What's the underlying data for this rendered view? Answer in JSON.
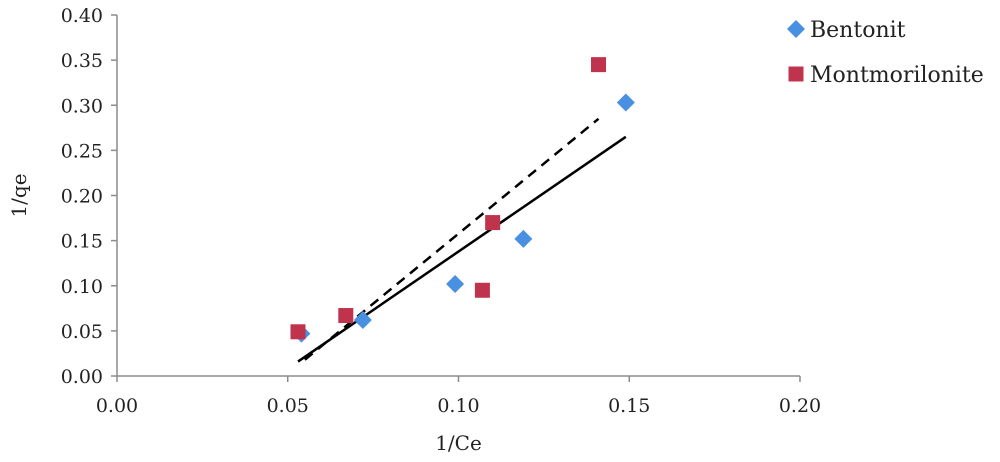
{
  "chart_data": {
    "type": "scatter",
    "xlabel": "1/Ce",
    "ylabel": "1/qe",
    "xlim": [
      0,
      0.2
    ],
    "ylim": [
      0,
      0.4
    ],
    "x_ticks": [
      "0.00",
      "0.05",
      "0.10",
      "0.15",
      "0.20"
    ],
    "y_ticks": [
      "0.00",
      "0.05",
      "0.10",
      "0.15",
      "0.20",
      "0.25",
      "0.30",
      "0.35",
      "0.40"
    ],
    "grid": false,
    "legend_position": "top-right",
    "series": [
      {
        "name": "Bentonit",
        "marker": "diamond",
        "color": "#4a90e2",
        "points": [
          {
            "x": 0.054,
            "y": 0.047
          },
          {
            "x": 0.072,
            "y": 0.062
          },
          {
            "x": 0.099,
            "y": 0.102
          },
          {
            "x": 0.119,
            "y": 0.152
          },
          {
            "x": 0.149,
            "y": 0.303
          }
        ],
        "trendline": {
          "style": "solid",
          "color": "#000000",
          "x": [
            0.053,
            0.149
          ],
          "y": [
            0.016,
            0.265
          ]
        }
      },
      {
        "name": "Montmorilonite",
        "marker": "square",
        "color": "#c0334d",
        "points": [
          {
            "x": 0.053,
            "y": 0.049
          },
          {
            "x": 0.067,
            "y": 0.067
          },
          {
            "x": 0.107,
            "y": 0.095
          },
          {
            "x": 0.11,
            "y": 0.17
          },
          {
            "x": 0.141,
            "y": 0.345
          }
        ],
        "trendline": {
          "style": "dashed",
          "color": "#000000",
          "x": [
            0.055,
            0.141
          ],
          "y": [
            0.018,
            0.285
          ]
        }
      }
    ]
  }
}
